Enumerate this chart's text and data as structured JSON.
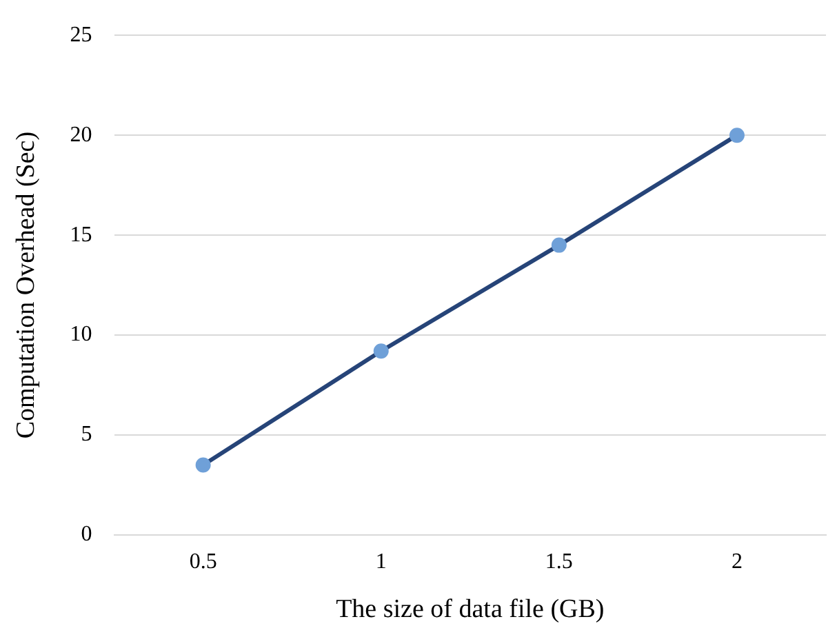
{
  "chart_data": {
    "type": "line",
    "xlabel": "The size of data file (GB)",
    "ylabel": "Computation Overhead (Sec)",
    "categories": [
      "0.5",
      "1",
      "1.5",
      "2"
    ],
    "series": [
      {
        "color": "#264478",
        "colors": [
          "#6fa0d8",
          "#6fa0d8",
          "#6fa0d8",
          "#6fa0d8"
        ],
        "values": [
          3.5,
          9.2,
          14.5,
          20
        ]
      }
    ],
    "ylim": [
      0,
      25
    ],
    "yticks": [
      0,
      5,
      10,
      15,
      20,
      25
    ],
    "grid": "y",
    "legend": false,
    "marker": "circle",
    "line_style": "solid"
  }
}
